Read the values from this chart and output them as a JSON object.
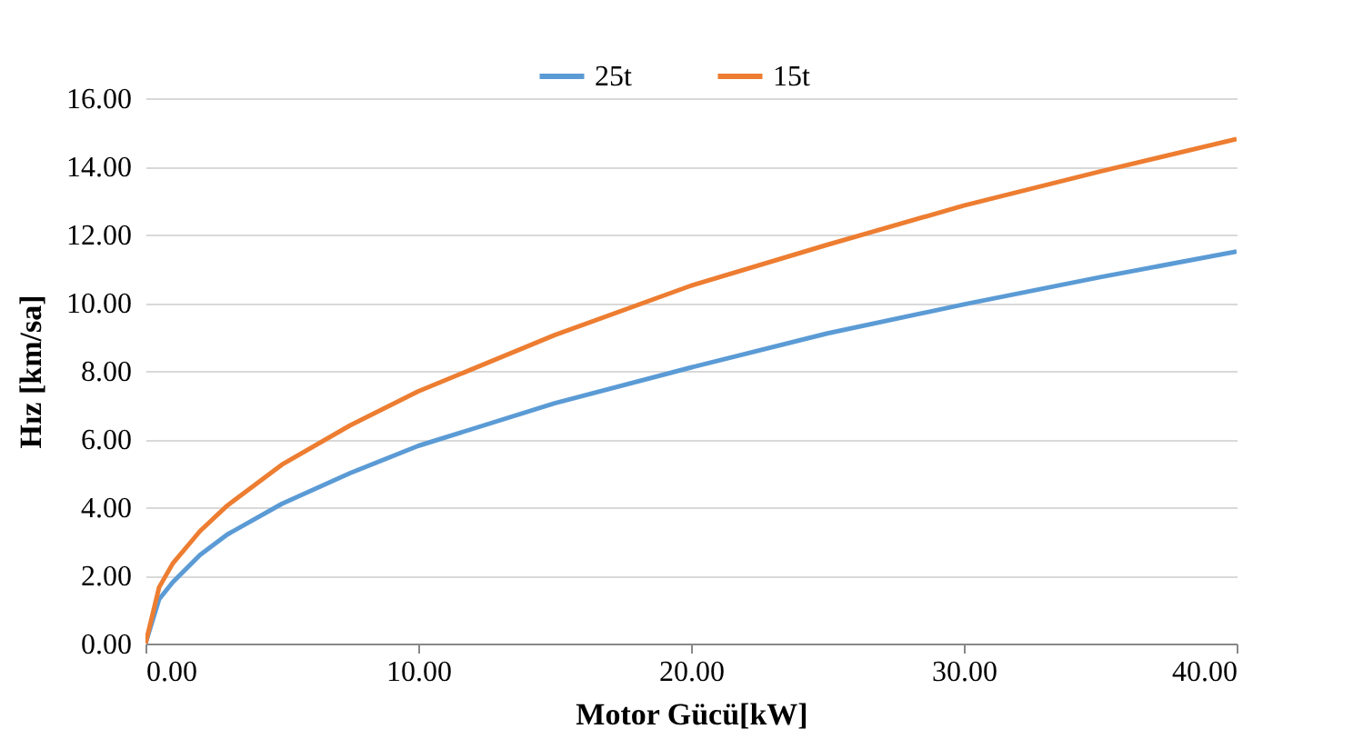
{
  "chart_data": {
    "type": "line",
    "xlabel": "Motor Gücü[kW]",
    "ylabel": "Hız [km/sa]",
    "x": [
      0,
      0.5,
      1,
      2,
      3,
      5,
      7.5,
      10,
      15,
      20,
      25,
      30,
      35,
      40
    ],
    "series": [
      {
        "name": "25t",
        "color": "#5b9bd5",
        "values": [
          0,
          1.3,
          1.8,
          2.6,
          3.2,
          4.1,
          5.0,
          5.8,
          7.05,
          8.1,
          9.1,
          9.95,
          10.75,
          11.5
        ]
      },
      {
        "name": "15t",
        "color": "#ed7d31",
        "values": [
          0,
          1.65,
          2.35,
          3.3,
          4.05,
          5.25,
          6.4,
          7.4,
          9.05,
          10.5,
          11.7,
          12.85,
          13.85,
          14.8
        ]
      }
    ],
    "xlim": [
      0,
      40
    ],
    "xticks": [
      {
        "value": 0,
        "label": "0.00"
      },
      {
        "value": 10,
        "label": "10.00"
      },
      {
        "value": 20,
        "label": "20.00"
      },
      {
        "value": 30,
        "label": "30.00"
      },
      {
        "value": 40,
        "label": "40.00"
      }
    ],
    "ylim": [
      0,
      16
    ],
    "yticks": [
      {
        "value": 0,
        "label": "0.00"
      },
      {
        "value": 2,
        "label": "2.00"
      },
      {
        "value": 4,
        "label": "4.00"
      },
      {
        "value": 6,
        "label": "6.00"
      },
      {
        "value": 8,
        "label": "8.00"
      },
      {
        "value": 10,
        "label": "10.00"
      },
      {
        "value": 12,
        "label": "12.00"
      },
      {
        "value": 14,
        "label": "14.00"
      },
      {
        "value": 16,
        "label": "16.00"
      }
    ],
    "grid": "y",
    "legend": "top",
    "marker": "none",
    "line_style": "solid"
  }
}
